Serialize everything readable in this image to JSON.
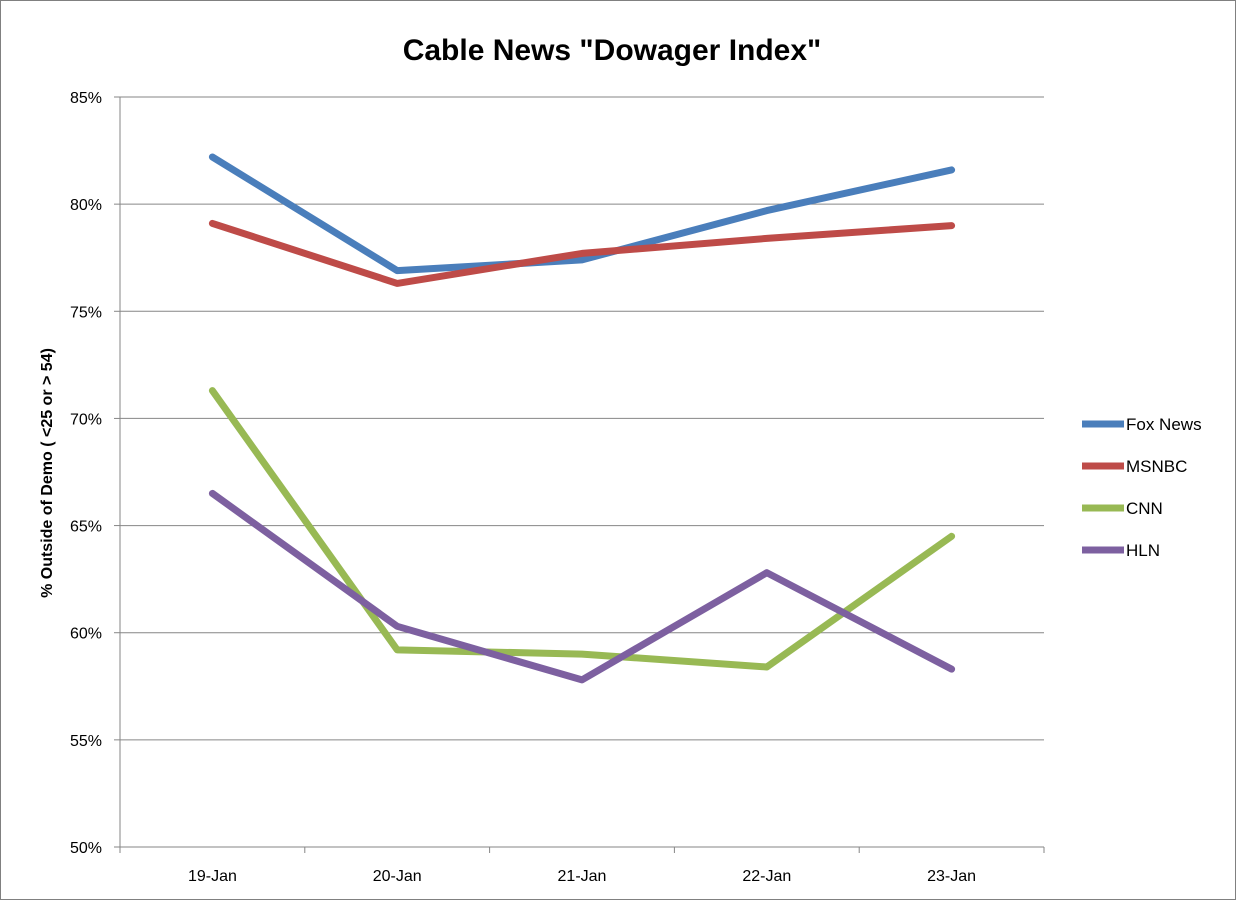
{
  "chart_data": {
    "type": "line",
    "title": "Cable News \"Dowager Index\"",
    "xlabel": "",
    "ylabel": "% Outside of Demo ( <25 or > 54)",
    "categories": [
      "19-Jan",
      "20-Jan",
      "21-Jan",
      "22-Jan",
      "23-Jan"
    ],
    "ylim": [
      0.5,
      0.85
    ],
    "y_ticks": [
      0.5,
      0.55,
      0.6,
      0.65,
      0.7,
      0.75,
      0.8,
      0.85
    ],
    "y_tick_labels": [
      "50%",
      "55%",
      "60%",
      "65%",
      "70%",
      "75%",
      "80%",
      "85%"
    ],
    "grid": "horizontal",
    "legend_position": "right",
    "series": [
      {
        "name": "Fox News",
        "color": "#4a7ebb",
        "values": [
          0.822,
          0.769,
          0.774,
          0.797,
          0.816
        ]
      },
      {
        "name": "MSNBC",
        "color": "#be4b48",
        "values": [
          0.791,
          0.763,
          0.777,
          0.784,
          0.79
        ]
      },
      {
        "name": "CNN",
        "color": "#98b954",
        "values": [
          0.713,
          0.592,
          0.59,
          0.584,
          0.645
        ]
      },
      {
        "name": "HLN",
        "color": "#7d60a0",
        "values": [
          0.665,
          0.603,
          0.578,
          0.628,
          0.583
        ]
      }
    ]
  }
}
